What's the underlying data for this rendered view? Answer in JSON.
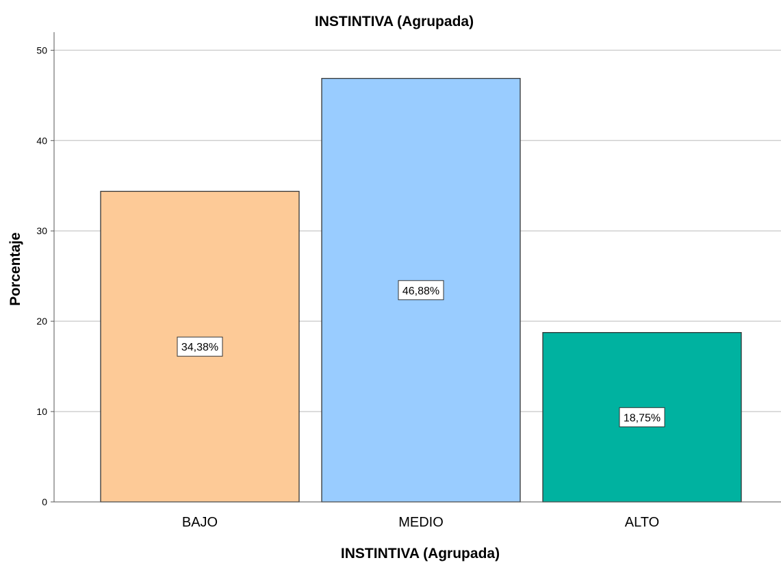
{
  "chart_data": {
    "type": "bar",
    "title": "INSTINTIVA (Agrupada)",
    "xlabel": "INSTINTIVA (Agrupada)",
    "ylabel": "Porcentaje",
    "categories": [
      "BAJO",
      "MEDIO",
      "ALTO"
    ],
    "values": [
      34.38,
      46.88,
      18.75
    ],
    "data_labels": [
      "34,38%",
      "46,88%",
      "18,75%"
    ],
    "colors": [
      "#fdca97",
      "#99ccff",
      "#00b2a0"
    ],
    "ylim": [
      0,
      52
    ],
    "yticks": [
      0,
      10,
      20,
      30,
      40,
      50
    ],
    "grid": true,
    "legend": "none"
  }
}
